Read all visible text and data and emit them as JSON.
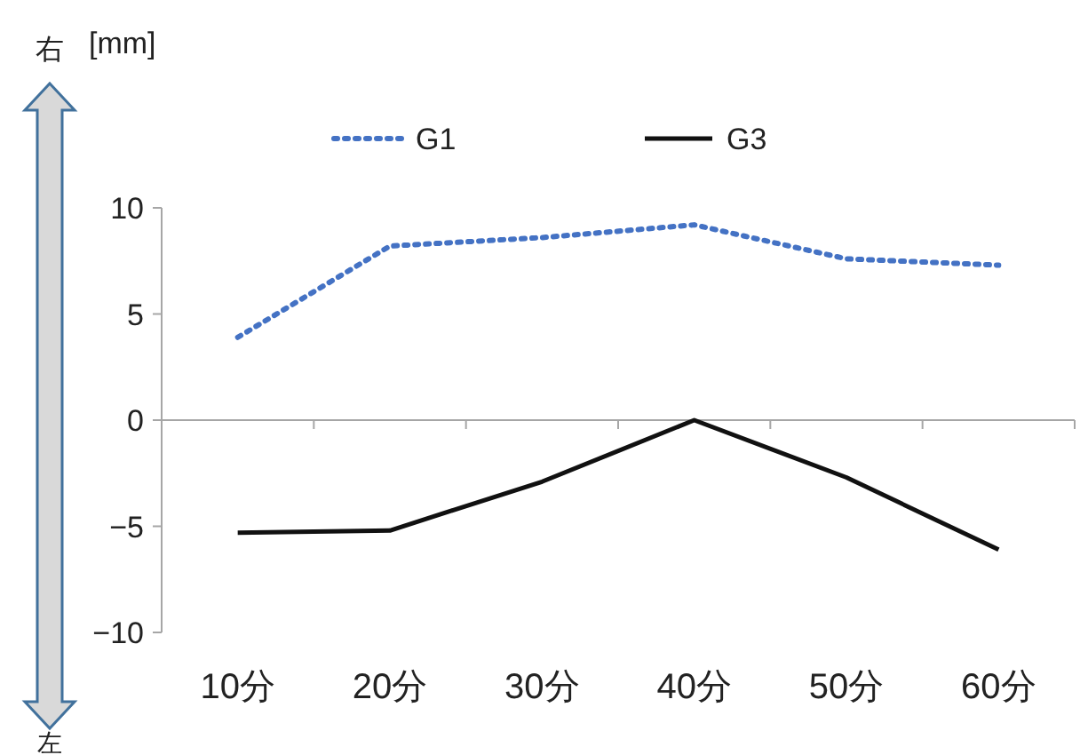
{
  "chart_data": {
    "type": "line",
    "ylabel": "[mm]",
    "annotations": [
      "右",
      "左"
    ],
    "categories": [
      "10分",
      "20分",
      "30分",
      "40分",
      "50分",
      "60分"
    ],
    "series": [
      {
        "name": "G1",
        "color": "#4472c4",
        "line_style": "dotted",
        "values": [
          3.9,
          8.2,
          8.6,
          9.2,
          7.6,
          7.3
        ]
      },
      {
        "name": "G3",
        "color": "#111111",
        "line_style": "solid",
        "values": [
          -5.3,
          -5.2,
          -2.9,
          0,
          -2.7,
          -6.1
        ]
      }
    ],
    "ylim": [
      -10,
      10
    ],
    "yticks": [
      -10,
      -5,
      0,
      5,
      10
    ],
    "legend": "top"
  }
}
